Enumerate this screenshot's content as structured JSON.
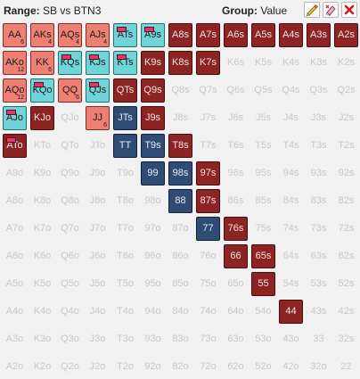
{
  "header": {
    "range_label": "Range:",
    "range_value": "SB vs BTN3",
    "group_label": "Group:",
    "group_value": "Value",
    "tools": [
      "pencil-icon",
      "eraser-icon",
      "close-icon"
    ]
  },
  "grid": {
    "rows": [
      [
        {
          "t": "AA",
          "s": "salmon",
          "n": "6"
        },
        {
          "t": "AKs",
          "s": "salmon",
          "n": "4"
        },
        {
          "t": "AQs",
          "s": "salmon",
          "n": "4"
        },
        {
          "t": "AJs",
          "s": "salmon",
          "n": "4"
        },
        {
          "t": "ATs",
          "s": "teal",
          "m": true
        },
        {
          "t": "A9s",
          "s": "teal",
          "m": true
        },
        {
          "t": "A8s",
          "s": "red"
        },
        {
          "t": "A7s",
          "s": "red"
        },
        {
          "t": "A6s",
          "s": "red"
        },
        {
          "t": "A5s",
          "s": "red"
        },
        {
          "t": "A4s",
          "s": "red"
        },
        {
          "t": "A3s",
          "s": "red"
        },
        {
          "t": "A2s",
          "s": "red"
        }
      ],
      [
        {
          "t": "AKo",
          "s": "salmon",
          "n": "12"
        },
        {
          "t": "KK",
          "s": "salmon",
          "n": "6"
        },
        {
          "t": "KQs",
          "s": "teal",
          "m": true
        },
        {
          "t": "KJs",
          "s": "teal",
          "m": true
        },
        {
          "t": "KTs",
          "s": "teal",
          "m": true
        },
        {
          "t": "K9s",
          "s": "red"
        },
        {
          "t": "K8s",
          "s": "red"
        },
        {
          "t": "K7s",
          "s": "red"
        },
        {
          "t": "K6s",
          "s": "empty"
        },
        {
          "t": "K5s",
          "s": "empty"
        },
        {
          "t": "K4s",
          "s": "empty"
        },
        {
          "t": "K3s",
          "s": "empty"
        },
        {
          "t": "K2s",
          "s": "empty"
        }
      ],
      [
        {
          "t": "AQo",
          "s": "salmon",
          "n": "12"
        },
        {
          "t": "KQo",
          "s": "teal",
          "m": true
        },
        {
          "t": "QQ",
          "s": "salmon",
          "n": "6"
        },
        {
          "t": "QJs",
          "s": "teal",
          "m": true
        },
        {
          "t": "QTs",
          "s": "red"
        },
        {
          "t": "Q9s",
          "s": "red"
        },
        {
          "t": "Q8s",
          "s": "empty"
        },
        {
          "t": "Q7s",
          "s": "empty"
        },
        {
          "t": "Q6s",
          "s": "empty"
        },
        {
          "t": "Q5s",
          "s": "empty"
        },
        {
          "t": "Q4s",
          "s": "empty"
        },
        {
          "t": "Q3s",
          "s": "empty"
        },
        {
          "t": "Q2s",
          "s": "empty"
        }
      ],
      [
        {
          "t": "AJo",
          "s": "teal",
          "m": true
        },
        {
          "t": "KJo",
          "s": "red"
        },
        {
          "t": "QJo",
          "s": "empty"
        },
        {
          "t": "JJ",
          "s": "salmon",
          "n": "6"
        },
        {
          "t": "JTs",
          "s": "blue"
        },
        {
          "t": "J9s",
          "s": "red"
        },
        {
          "t": "J8s",
          "s": "empty"
        },
        {
          "t": "J7s",
          "s": "empty"
        },
        {
          "t": "J6s",
          "s": "empty"
        },
        {
          "t": "J5s",
          "s": "empty"
        },
        {
          "t": "J4s",
          "s": "empty"
        },
        {
          "t": "J3s",
          "s": "empty"
        },
        {
          "t": "J2s",
          "s": "empty"
        }
      ],
      [
        {
          "t": "ATo",
          "s": "red",
          "m": true
        },
        {
          "t": "KTo",
          "s": "empty"
        },
        {
          "t": "QTo",
          "s": "empty"
        },
        {
          "t": "JTo",
          "s": "empty"
        },
        {
          "t": "TT",
          "s": "blue"
        },
        {
          "t": "T9s",
          "s": "blue"
        },
        {
          "t": "T8s",
          "s": "red"
        },
        {
          "t": "T7s",
          "s": "empty"
        },
        {
          "t": "T6s",
          "s": "empty"
        },
        {
          "t": "T5s",
          "s": "empty"
        },
        {
          "t": "T4s",
          "s": "empty"
        },
        {
          "t": "T3s",
          "s": "empty"
        },
        {
          "t": "T2s",
          "s": "empty"
        }
      ],
      [
        {
          "t": "A9o",
          "s": "empty"
        },
        {
          "t": "K9o",
          "s": "empty"
        },
        {
          "t": "Q9o",
          "s": "empty"
        },
        {
          "t": "J9o",
          "s": "empty"
        },
        {
          "t": "T9o",
          "s": "empty"
        },
        {
          "t": "99",
          "s": "blue"
        },
        {
          "t": "98s",
          "s": "blue"
        },
        {
          "t": "97s",
          "s": "red"
        },
        {
          "t": "96s",
          "s": "empty"
        },
        {
          "t": "95s",
          "s": "empty"
        },
        {
          "t": "94s",
          "s": "empty"
        },
        {
          "t": "93s",
          "s": "empty"
        },
        {
          "t": "92s",
          "s": "empty"
        }
      ],
      [
        {
          "t": "A8o",
          "s": "empty"
        },
        {
          "t": "K8o",
          "s": "empty"
        },
        {
          "t": "Q8o",
          "s": "empty"
        },
        {
          "t": "J8o",
          "s": "empty"
        },
        {
          "t": "T8o",
          "s": "empty"
        },
        {
          "t": "98o",
          "s": "empty"
        },
        {
          "t": "88",
          "s": "blue"
        },
        {
          "t": "87s",
          "s": "red"
        },
        {
          "t": "86s",
          "s": "empty"
        },
        {
          "t": "85s",
          "s": "empty"
        },
        {
          "t": "84s",
          "s": "empty"
        },
        {
          "t": "83s",
          "s": "empty"
        },
        {
          "t": "82s",
          "s": "empty"
        }
      ],
      [
        {
          "t": "A7o",
          "s": "empty"
        },
        {
          "t": "K7o",
          "s": "empty"
        },
        {
          "t": "Q7o",
          "s": "empty"
        },
        {
          "t": "J7o",
          "s": "empty"
        },
        {
          "t": "T7o",
          "s": "empty"
        },
        {
          "t": "97o",
          "s": "empty"
        },
        {
          "t": "87o",
          "s": "empty"
        },
        {
          "t": "77",
          "s": "blue"
        },
        {
          "t": "76s",
          "s": "red"
        },
        {
          "t": "75s",
          "s": "empty"
        },
        {
          "t": "74s",
          "s": "empty"
        },
        {
          "t": "73s",
          "s": "empty"
        },
        {
          "t": "72s",
          "s": "empty"
        }
      ],
      [
        {
          "t": "A6o",
          "s": "empty"
        },
        {
          "t": "K6o",
          "s": "empty"
        },
        {
          "t": "Q6o",
          "s": "empty"
        },
        {
          "t": "J6o",
          "s": "empty"
        },
        {
          "t": "T6o",
          "s": "empty"
        },
        {
          "t": "96o",
          "s": "empty"
        },
        {
          "t": "86o",
          "s": "empty"
        },
        {
          "t": "76o",
          "s": "empty"
        },
        {
          "t": "66",
          "s": "red"
        },
        {
          "t": "65s",
          "s": "red"
        },
        {
          "t": "64s",
          "s": "empty"
        },
        {
          "t": "63s",
          "s": "empty"
        },
        {
          "t": "62s",
          "s": "empty"
        }
      ],
      [
        {
          "t": "A5o",
          "s": "empty"
        },
        {
          "t": "K5o",
          "s": "empty"
        },
        {
          "t": "Q5o",
          "s": "empty"
        },
        {
          "t": "J5o",
          "s": "empty"
        },
        {
          "t": "T5o",
          "s": "empty"
        },
        {
          "t": "95o",
          "s": "empty"
        },
        {
          "t": "85o",
          "s": "empty"
        },
        {
          "t": "75o",
          "s": "empty"
        },
        {
          "t": "65o",
          "s": "empty"
        },
        {
          "t": "55",
          "s": "red"
        },
        {
          "t": "54s",
          "s": "empty"
        },
        {
          "t": "53s",
          "s": "empty"
        },
        {
          "t": "52s",
          "s": "empty"
        }
      ],
      [
        {
          "t": "A4o",
          "s": "empty"
        },
        {
          "t": "K4o",
          "s": "empty"
        },
        {
          "t": "Q4o",
          "s": "empty"
        },
        {
          "t": "J4o",
          "s": "empty"
        },
        {
          "t": "T4o",
          "s": "empty"
        },
        {
          "t": "94o",
          "s": "empty"
        },
        {
          "t": "84o",
          "s": "empty"
        },
        {
          "t": "74o",
          "s": "empty"
        },
        {
          "t": "64o",
          "s": "empty"
        },
        {
          "t": "54o",
          "s": "empty"
        },
        {
          "t": "44",
          "s": "red"
        },
        {
          "t": "43s",
          "s": "empty"
        },
        {
          "t": "42s",
          "s": "empty"
        }
      ],
      [
        {
          "t": "A3o",
          "s": "empty"
        },
        {
          "t": "K3o",
          "s": "empty"
        },
        {
          "t": "Q3o",
          "s": "empty"
        },
        {
          "t": "J3o",
          "s": "empty"
        },
        {
          "t": "T3o",
          "s": "empty"
        },
        {
          "t": "93o",
          "s": "empty"
        },
        {
          "t": "83o",
          "s": "empty"
        },
        {
          "t": "73o",
          "s": "empty"
        },
        {
          "t": "63o",
          "s": "empty"
        },
        {
          "t": "53o",
          "s": "empty"
        },
        {
          "t": "43o",
          "s": "empty"
        },
        {
          "t": "33",
          "s": "empty"
        },
        {
          "t": "32s",
          "s": "empty"
        }
      ],
      [
        {
          "t": "A2o",
          "s": "empty"
        },
        {
          "t": "K2o",
          "s": "empty"
        },
        {
          "t": "Q2o",
          "s": "empty"
        },
        {
          "t": "J2o",
          "s": "empty"
        },
        {
          "t": "T2o",
          "s": "empty"
        },
        {
          "t": "92o",
          "s": "empty"
        },
        {
          "t": "82o",
          "s": "empty"
        },
        {
          "t": "72o",
          "s": "empty"
        },
        {
          "t": "62o",
          "s": "empty"
        },
        {
          "t": "52o",
          "s": "empty"
        },
        {
          "t": "42o",
          "s": "empty"
        },
        {
          "t": "32o",
          "s": "empty"
        },
        {
          "t": "22",
          "s": "empty"
        }
      ]
    ]
  },
  "colors": {
    "salmon": "#ee7f73",
    "teal": "#6fd5d6",
    "red": "#8d2424",
    "blue": "#2f4c74",
    "empty_text": "#c9c9c9",
    "marker": "#e0386a"
  }
}
